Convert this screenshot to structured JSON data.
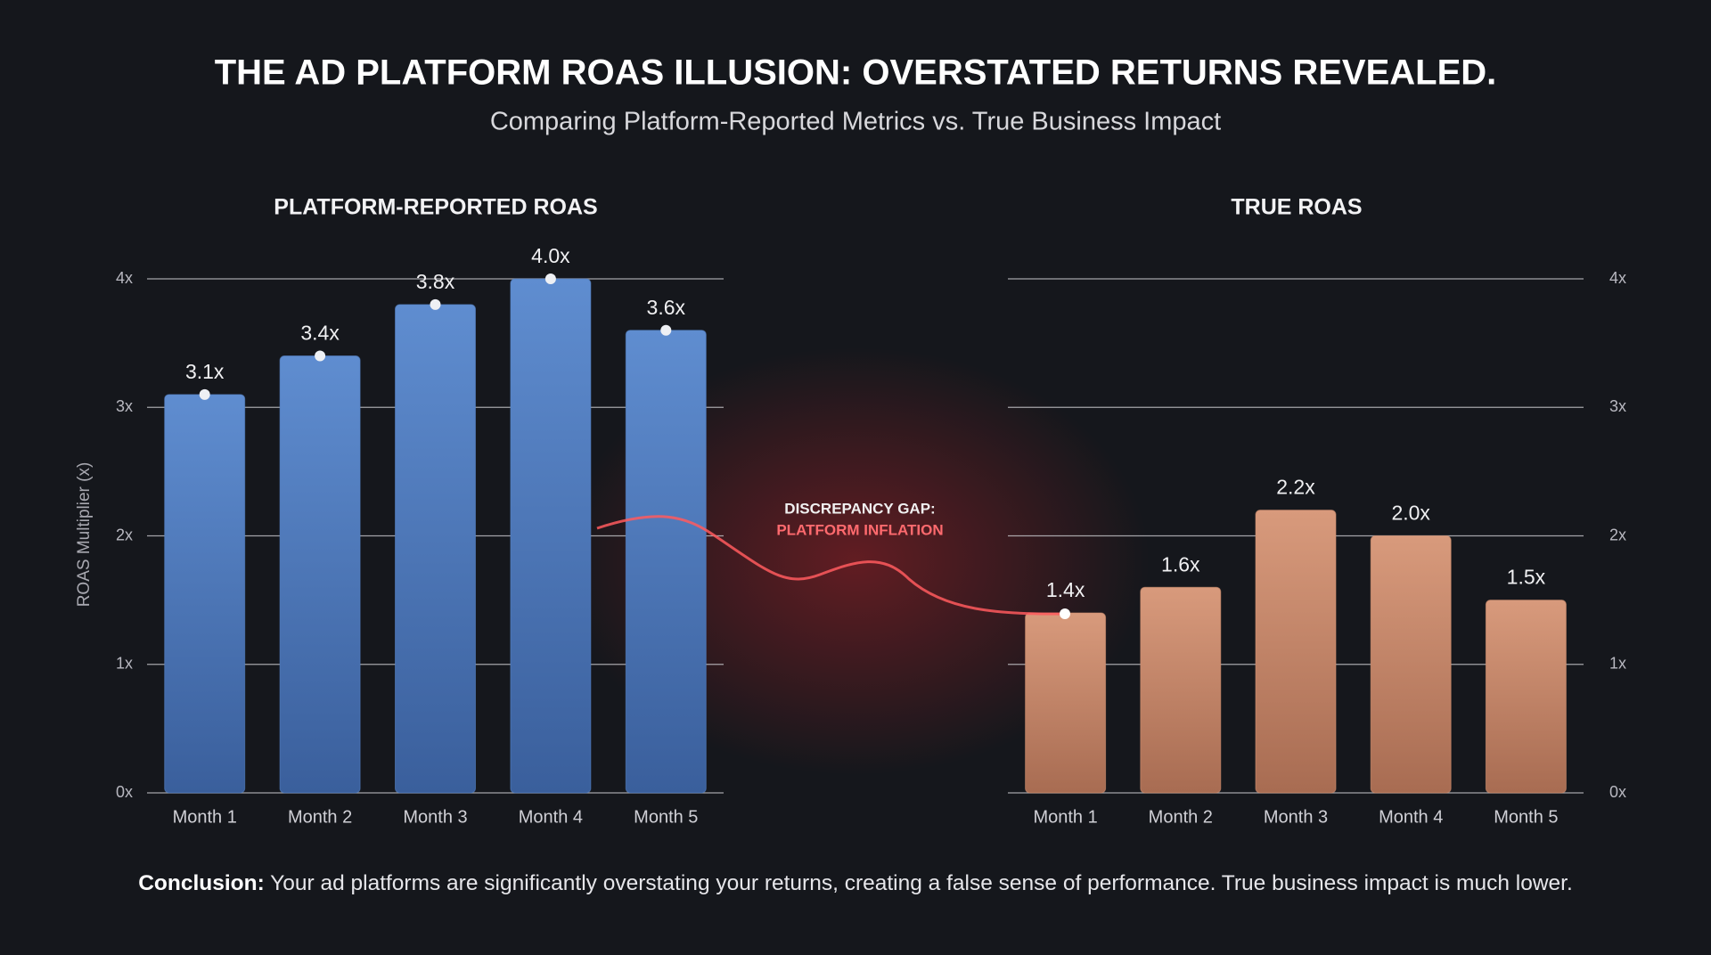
{
  "title": "THE AD PLATFORM ROAS ILLUSION: OVERSTATED RETURNS REVEALED.",
  "subtitle": "Comparing Platform-Reported Metrics vs. True Business Impact",
  "chart_data": [
    {
      "type": "bar",
      "title": "PLATFORM-REPORTED ROAS",
      "ylabel": "ROAS Multiplier (x)",
      "categories": [
        "Month 1",
        "Month 2",
        "Month 3",
        "Month 4",
        "Month 5"
      ],
      "values": [
        3.1,
        3.4,
        3.8,
        4.0,
        3.6
      ],
      "value_labels": [
        "3.1x",
        "3.4x",
        "3.8x",
        "4.0x",
        "3.6x"
      ],
      "color": "#5582c4",
      "markers": true,
      "axis_side": "left",
      "ylim": [
        0,
        4
      ],
      "yticks": [
        {
          "value": 0,
          "label": "0x"
        },
        {
          "value": 1,
          "label": "1x"
        },
        {
          "value": 2,
          "label": "2x"
        },
        {
          "value": 3,
          "label": "3x"
        },
        {
          "value": 4,
          "label": "4x"
        }
      ],
      "grid": true
    },
    {
      "type": "bar",
      "title": "TRUE ROAS",
      "categories": [
        "Month 1",
        "Month 2",
        "Month 3",
        "Month 4",
        "Month 5"
      ],
      "values": [
        1.4,
        1.6,
        2.2,
        2.0,
        1.5
      ],
      "value_labels": [
        "1.4x",
        "1.6x",
        "2.2x",
        "2.0x",
        "1.5x"
      ],
      "color": "#d1906f",
      "markers": false,
      "axis_side": "right",
      "ylim": [
        0,
        4
      ],
      "yticks": [
        {
          "value": 0,
          "label": "0x"
        },
        {
          "value": 1,
          "label": "1x"
        },
        {
          "value": 2,
          "label": "2x"
        },
        {
          "value": 3,
          "label": "3x"
        },
        {
          "value": 4,
          "label": "4x"
        }
      ],
      "grid": true
    }
  ],
  "annotation": {
    "line1": "DISCREPANCY GAP:",
    "line2": "PLATFORM INFLATION"
  },
  "conclusion": {
    "lead": "Conclusion:",
    "text": " Your ad platforms are significantly overstating your returns, creating a false sense of performance. True business impact is much lower."
  }
}
